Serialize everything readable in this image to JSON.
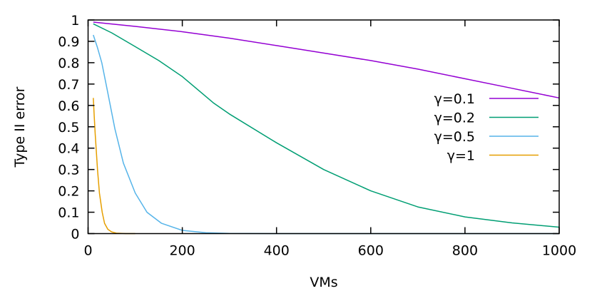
{
  "chart_data": {
    "type": "line",
    "title": "",
    "xlabel": "VMs",
    "ylabel": "Type II error",
    "xlim": [
      0,
      1000
    ],
    "ylim": [
      0,
      1
    ],
    "xticks": [
      0,
      200,
      400,
      600,
      800,
      1000
    ],
    "xtick_labels": [
      "0",
      "200",
      "400",
      "600",
      "800",
      "1000"
    ],
    "yticks": [
      0,
      0.1,
      0.2,
      0.3,
      0.4,
      0.5,
      0.6,
      0.7,
      0.8,
      0.9,
      1
    ],
    "ytick_labels": [
      "0",
      "0.1",
      "0.2",
      "0.3",
      "0.4",
      "0.5",
      "0.6",
      "0.7",
      "0.8",
      "0.9",
      "1"
    ],
    "grid": false,
    "legend_position": "right",
    "series": [
      {
        "name": "γ=0.1",
        "color": "#9400d3",
        "x": [
          11,
          100,
          200,
          300,
          400,
          500,
          600,
          700,
          800,
          900,
          1000
        ],
        "y": [
          0.99,
          0.97,
          0.945,
          0.915,
          0.88,
          0.845,
          0.81,
          0.77,
          0.725,
          0.68,
          0.635
        ]
      },
      {
        "name": "γ=0.2",
        "color": "#009e73",
        "x": [
          11,
          50,
          100,
          150,
          200,
          267,
          300,
          400,
          500,
          600,
          700,
          800,
          900,
          1000
        ],
        "y": [
          0.982,
          0.94,
          0.875,
          0.81,
          0.735,
          0.61,
          0.56,
          0.425,
          0.3,
          0.2,
          0.125,
          0.078,
          0.05,
          0.03
        ]
      },
      {
        "name": "γ=0.5",
        "color": "#56b4e9",
        "x": [
          11,
          20,
          29,
          40,
          57,
          75,
          100,
          125,
          156,
          200,
          250,
          300,
          400,
          1000
        ],
        "y": [
          0.93,
          0.87,
          0.8,
          0.68,
          0.49,
          0.33,
          0.19,
          0.1,
          0.048,
          0.015,
          0.004,
          0.001,
          0,
          0
        ]
      },
      {
        "name": "γ=1",
        "color": "#e69f00",
        "x": [
          11,
          13,
          15,
          20,
          24,
          30,
          35,
          42,
          50,
          60,
          80,
          100
        ],
        "y": [
          0.635,
          0.55,
          0.47,
          0.3,
          0.19,
          0.1,
          0.048,
          0.02,
          0.008,
          0.002,
          0,
          0
        ]
      }
    ]
  }
}
